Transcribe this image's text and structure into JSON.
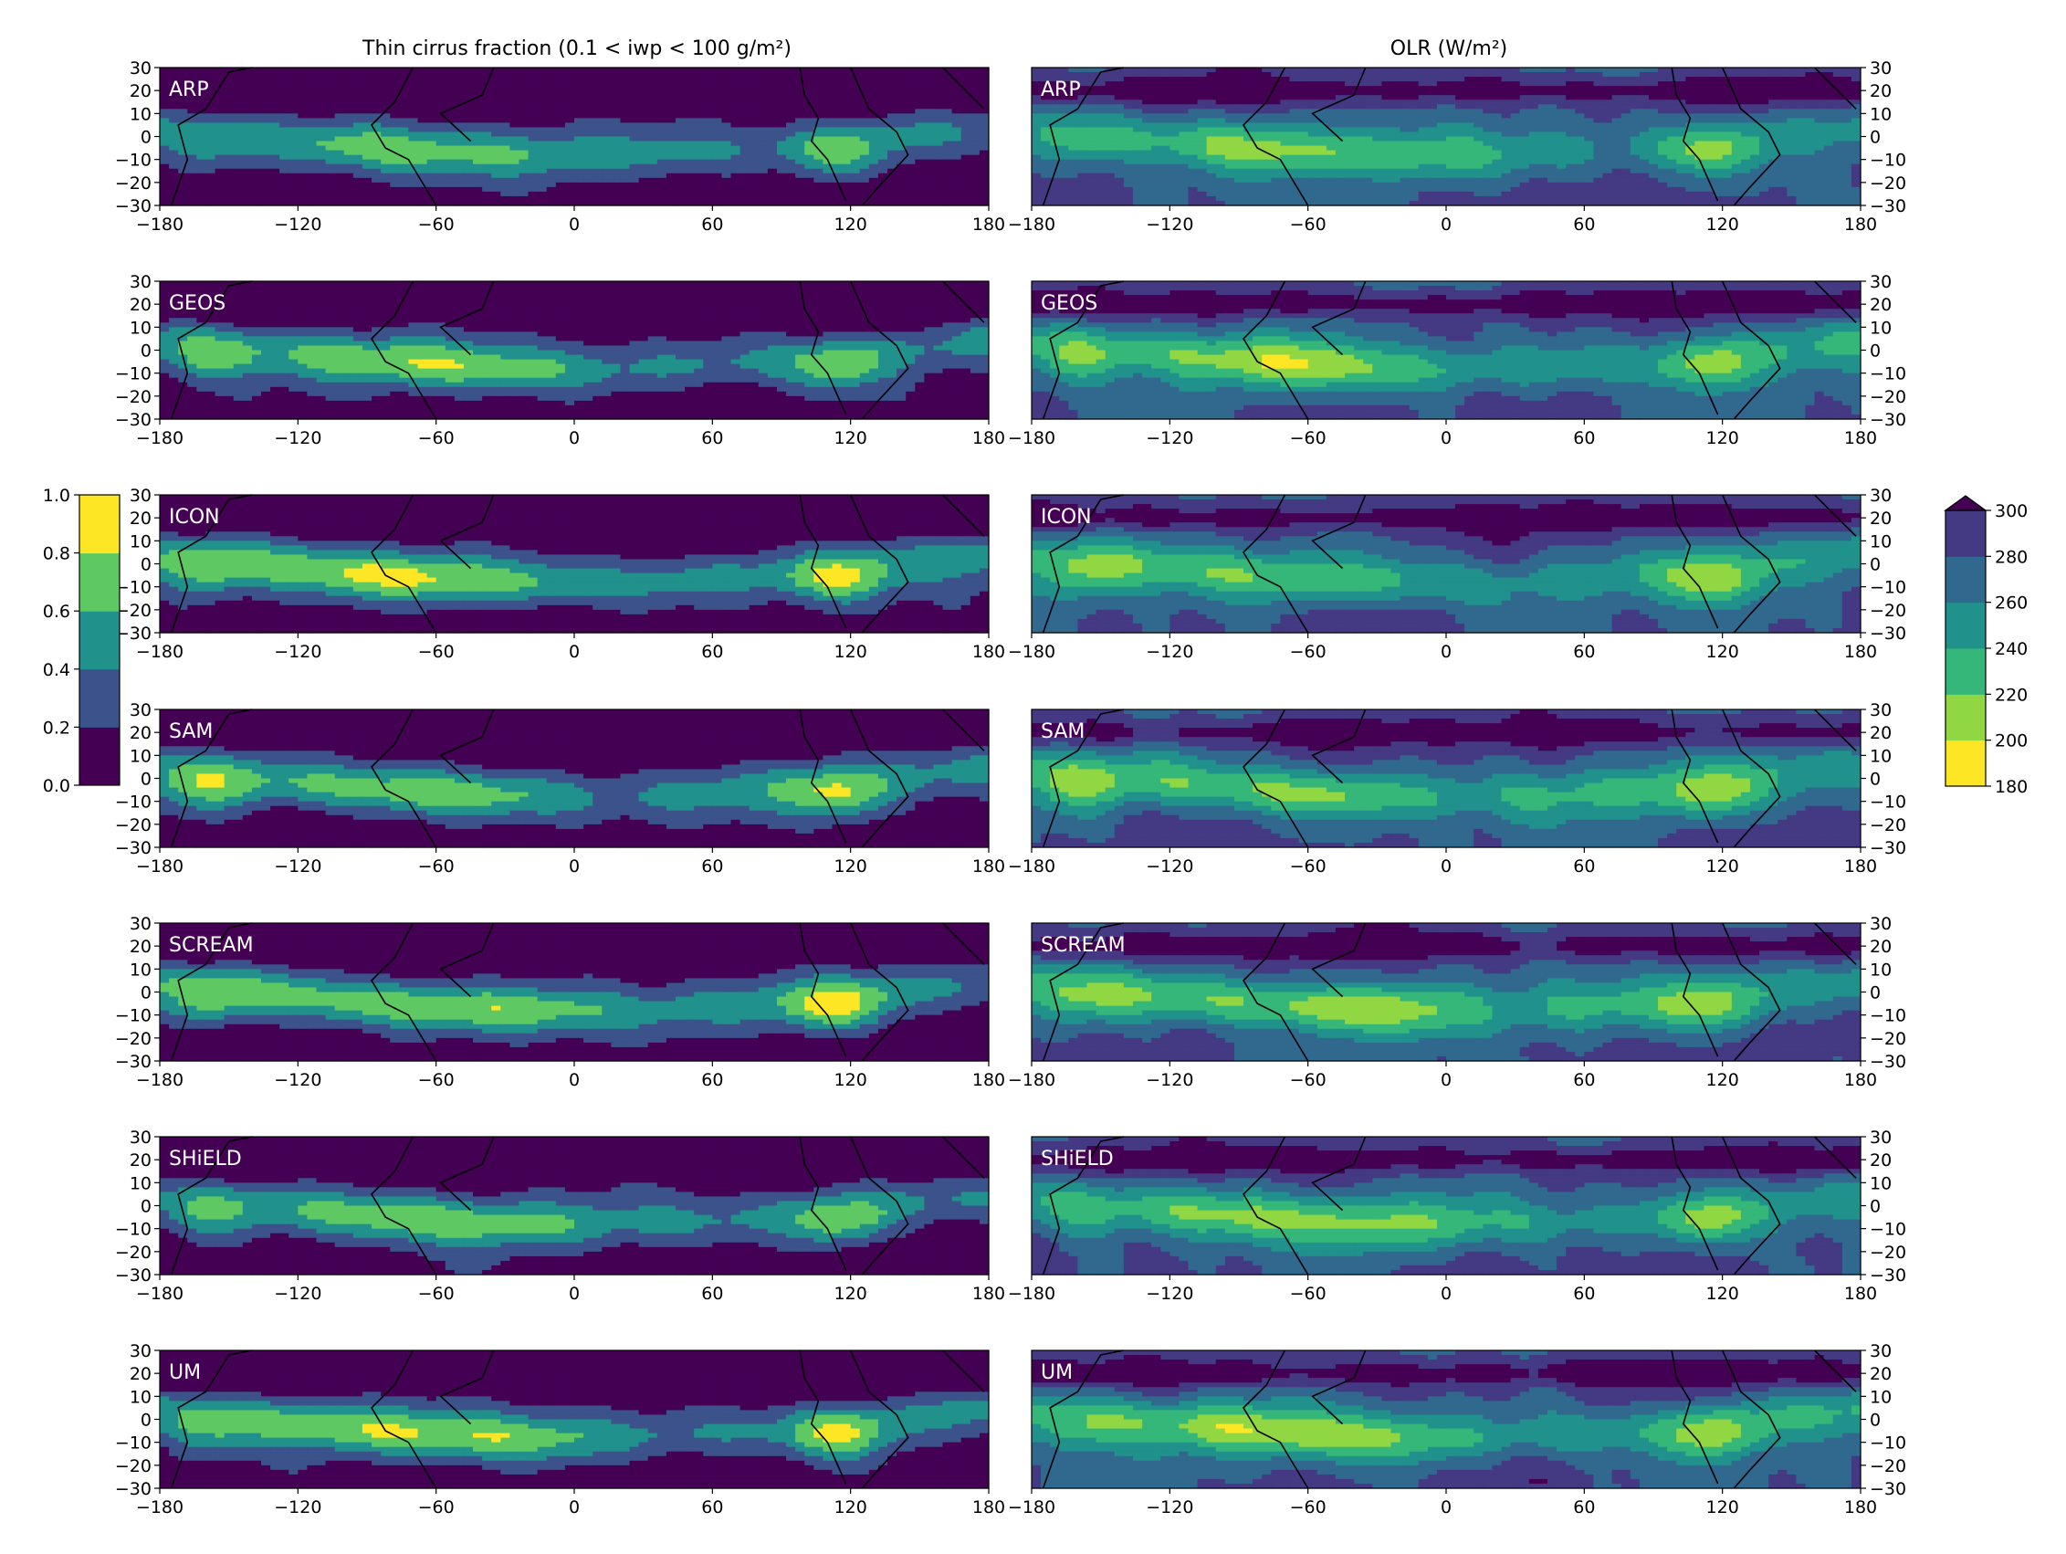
{
  "figure": {
    "left_title": "Thin cirrus fraction (0.1 < iwp < 100 g/m²)",
    "right_title": "OLR (W/m²)"
  },
  "chart_data": {
    "type": "heatmap",
    "description_type": "filled contour maps (lon × lat), two columns × seven model rows",
    "models": [
      "ARP",
      "GEOS",
      "ICON",
      "SAM",
      "SCREAM",
      "SHiELD",
      "UM"
    ],
    "x_ticks": [
      "−180",
      "−120",
      "−60",
      "0",
      "60",
      "120",
      "180"
    ],
    "y_ticks": [
      "30",
      "20",
      "10",
      "0",
      "−10",
      "−20",
      "−30"
    ],
    "xlim": [
      -180,
      180
    ],
    "ylim": [
      -30,
      30
    ],
    "left_colorbar": {
      "levels": [
        0.0,
        0.2,
        0.4,
        0.6,
        0.8,
        1.0
      ],
      "tick_labels": [
        "0.0",
        "0.2",
        "0.4",
        "0.6",
        "0.8",
        "1.0"
      ],
      "colors": [
        "#440154",
        "#3b528b",
        "#21918c",
        "#5ec962",
        "#fde725"
      ]
    },
    "right_colorbar": {
      "levels": [
        180,
        200,
        220,
        240,
        260,
        280,
        300
      ],
      "tick_labels": [
        "180",
        "200",
        "220",
        "240",
        "260",
        "280",
        "300"
      ],
      "colors": [
        "#fde725",
        "#90d743",
        "#35b779",
        "#21918c",
        "#31688e",
        "#443983"
      ],
      "extend_color": "#440154",
      "extend": "max"
    }
  }
}
